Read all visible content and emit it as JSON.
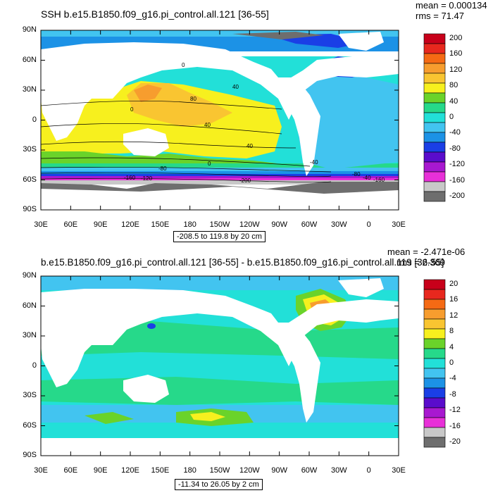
{
  "panel1": {
    "title": "SSH b.e15.B1850.f09_g16.pi_control.all.121 [36-55]",
    "mean": "mean = 0.000134",
    "rms": "rms = 71.47",
    "range": "-208.5 to 119.8 by 20 cm",
    "lat_ticks": [
      "90N",
      "60N",
      "30N",
      "0",
      "30S",
      "60S",
      "90S"
    ],
    "lon_ticks": [
      "30E",
      "60E",
      "90E",
      "120E",
      "150E",
      "180",
      "150W",
      "120W",
      "90W",
      "60W",
      "30W",
      "0",
      "30E"
    ],
    "colorbar_labels": [
      "200",
      "160",
      "120",
      "80",
      "40",
      "0",
      "-40",
      "-80",
      "-120",
      "-160",
      "-200"
    ],
    "colorbar_colors": [
      "#c8001a",
      "#e8281e",
      "#f56a14",
      "#f79d2e",
      "#f9c531",
      "#f7f01e",
      "#6ad32a",
      "#26d98a",
      "#22e0d8",
      "#42c4f0",
      "#1c92e6",
      "#1a3fe6",
      "#5a0ccc",
      "#a818d0",
      "#e830d8",
      "#c8c8c8",
      "#6e6e6e"
    ],
    "contour_labels": [
      "0",
      "40",
      "80",
      "40",
      "0",
      "-40",
      "-80",
      "-120",
      "-160",
      "-200",
      "0",
      "-80",
      "-40",
      "-160",
      "40"
    ]
  },
  "panel2": {
    "title": "b.e15.B1850.f09_g16.pi_control.all.121 [36-55] - b.e15.B1850.f09_g16.pi_control.all.119 [36-55]",
    "mean": "mean = -2.471e-06",
    "rms": "rms = 2.369",
    "range": "-11.34 to 26.05 by 2 cm",
    "lat_ticks": [
      "90N",
      "60N",
      "30N",
      "0",
      "30S",
      "60S",
      "90S"
    ],
    "lon_ticks": [
      "30E",
      "60E",
      "90E",
      "120E",
      "150E",
      "180",
      "150W",
      "120W",
      "90W",
      "60W",
      "30W",
      "0",
      "30E"
    ],
    "colorbar_labels": [
      "20",
      "16",
      "12",
      "8",
      "4",
      "0",
      "-4",
      "-8",
      "-12",
      "-16",
      "-20"
    ],
    "colorbar_colors": [
      "#c8001a",
      "#e8281e",
      "#f56a14",
      "#f79d2e",
      "#f9c531",
      "#f7f01e",
      "#6ad32a",
      "#26d98a",
      "#22e0d8",
      "#42c4f0",
      "#1c92e6",
      "#1a3fe6",
      "#5a0ccc",
      "#a818d0",
      "#e830d8",
      "#c8c8c8",
      "#6e6e6e"
    ]
  }
}
